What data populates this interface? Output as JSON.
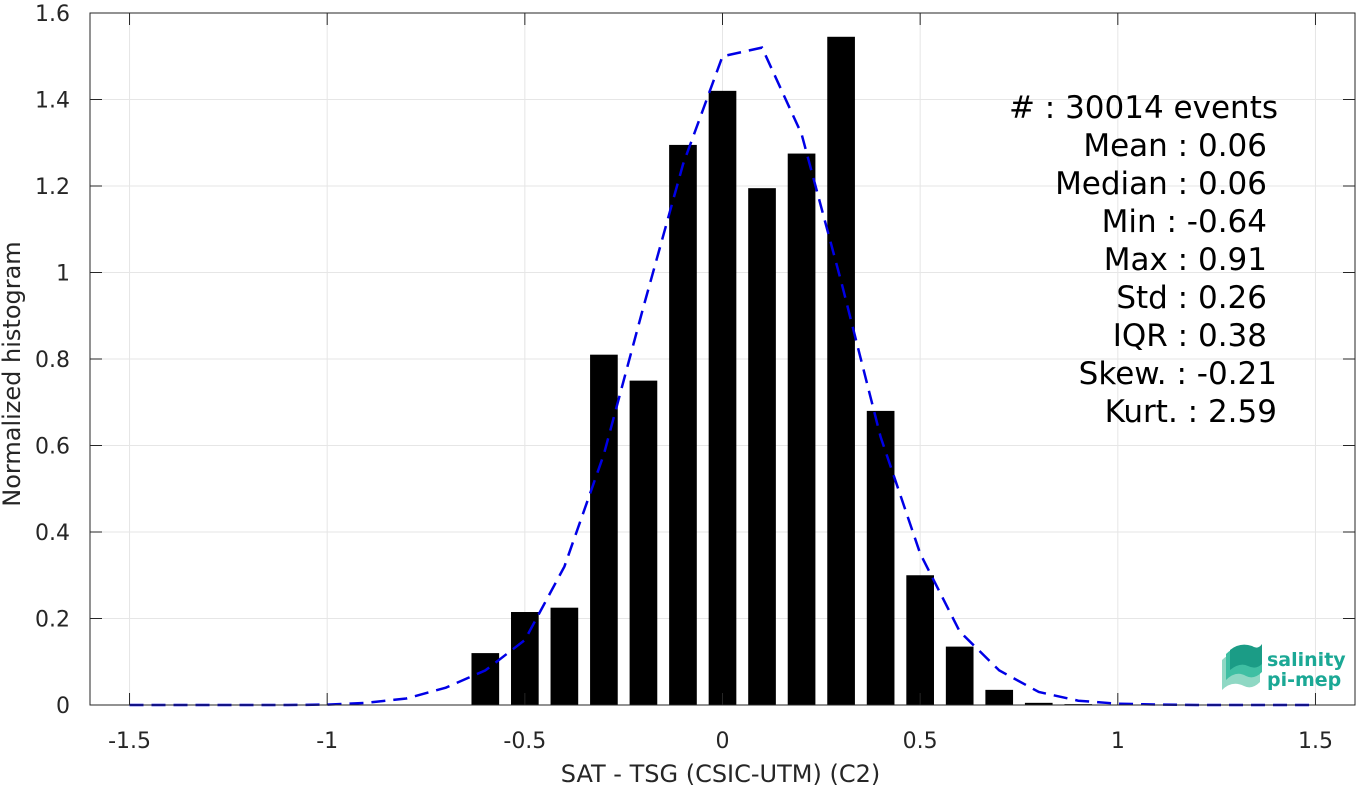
{
  "chart_data": {
    "type": "bar",
    "xlabel": "SAT - TSG (CSIC-UTM) (C2)",
    "ylabel": "Normalized histogram",
    "xlim": [
      -1.6,
      1.6
    ],
    "ylim": [
      0,
      1.6
    ],
    "xticks": [
      -1.5,
      -1,
      -0.5,
      0,
      0.5,
      1,
      1.5
    ],
    "xtick_labels": [
      "-1.5",
      "-1",
      "-0.5",
      "0",
      "0.5",
      "1",
      "1.5"
    ],
    "yticks": [
      0,
      0.2,
      0.4,
      0.6,
      0.8,
      1,
      1.2,
      1.4,
      1.6
    ],
    "ytick_labels": [
      "0",
      "0.2",
      "0.4",
      "0.6",
      "0.8",
      "1",
      "1.2",
      "1.4",
      "1.6"
    ],
    "grid": true,
    "bar_width": 0.07,
    "bars": {
      "x": [
        -0.6,
        -0.5,
        -0.4,
        -0.3,
        -0.2,
        -0.1,
        0,
        0.1,
        0.2,
        0.3,
        0.4,
        0.5,
        0.6,
        0.7,
        0.8,
        0.9
      ],
      "values": [
        0.12,
        0.215,
        0.225,
        0.81,
        0.75,
        1.295,
        1.42,
        1.195,
        1.275,
        1.545,
        0.68,
        0.3,
        0.135,
        0.035,
        0.005,
        0.002
      ],
      "color": "#000000"
    },
    "fit_curve": {
      "style": "dashed",
      "color": "#0000e6",
      "x": [
        -1.5,
        -1.4,
        -1.3,
        -1.2,
        -1.1,
        -1.0,
        -0.9,
        -0.8,
        -0.7,
        -0.6,
        -0.5,
        -0.4,
        -0.3,
        -0.2,
        -0.1,
        0,
        0.1,
        0.2,
        0.3,
        0.4,
        0.5,
        0.6,
        0.7,
        0.8,
        0.9,
        1.0,
        1.1,
        1.2,
        1.3,
        1.4,
        1.5
      ],
      "y": [
        0,
        0,
        0,
        0,
        0,
        0.001,
        0.005,
        0.015,
        0.04,
        0.08,
        0.15,
        0.32,
        0.58,
        0.92,
        1.25,
        1.5,
        1.52,
        1.32,
        0.98,
        0.62,
        0.35,
        0.17,
        0.08,
        0.03,
        0.01,
        0.003,
        0.001,
        0,
        0,
        0,
        0
      ]
    },
    "stats": [
      {
        "label": "#  : 30014 events"
      },
      {
        "label": "Mean : 0.06"
      },
      {
        "label": "Median : 0.06"
      },
      {
        "label": "Min : -0.64"
      },
      {
        "label": "Max : 0.91"
      },
      {
        "label": "Std : 0.26"
      },
      {
        "label": "IQR : 0.38"
      },
      {
        "label": "Skew. : -0.21"
      },
      {
        "label": "Kurt. : 2.59"
      }
    ]
  },
  "logo": {
    "line1": "salinity",
    "line2": "pi-mep"
  }
}
